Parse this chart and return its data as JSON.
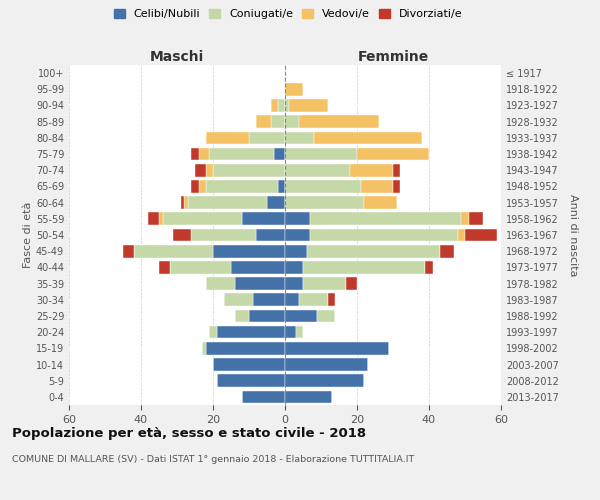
{
  "age_groups": [
    "0-4",
    "5-9",
    "10-14",
    "15-19",
    "20-24",
    "25-29",
    "30-34",
    "35-39",
    "40-44",
    "45-49",
    "50-54",
    "55-59",
    "60-64",
    "65-69",
    "70-74",
    "75-79",
    "80-84",
    "85-89",
    "90-94",
    "95-99",
    "100+"
  ],
  "birth_years": [
    "2013-2017",
    "2008-2012",
    "2003-2007",
    "1998-2002",
    "1993-1997",
    "1988-1992",
    "1983-1987",
    "1978-1982",
    "1973-1977",
    "1968-1972",
    "1963-1967",
    "1958-1962",
    "1953-1957",
    "1948-1952",
    "1943-1947",
    "1938-1942",
    "1933-1937",
    "1928-1932",
    "1923-1927",
    "1918-1922",
    "≤ 1917"
  ],
  "maschi": {
    "celibi": [
      12,
      19,
      20,
      22,
      19,
      10,
      9,
      14,
      15,
      20,
      8,
      12,
      5,
      2,
      0,
      3,
      0,
      0,
      0,
      0,
      0
    ],
    "coniugati": [
      0,
      0,
      0,
      1,
      2,
      4,
      8,
      8,
      17,
      22,
      18,
      22,
      22,
      20,
      20,
      18,
      10,
      4,
      2,
      0,
      0
    ],
    "vedovi": [
      0,
      0,
      0,
      0,
      0,
      0,
      0,
      0,
      0,
      0,
      0,
      1,
      1,
      2,
      2,
      3,
      12,
      4,
      2,
      0,
      0
    ],
    "divorziati": [
      0,
      0,
      0,
      0,
      0,
      0,
      0,
      0,
      3,
      3,
      5,
      3,
      1,
      2,
      3,
      2,
      0,
      0,
      0,
      0,
      0
    ]
  },
  "femmine": {
    "nubili": [
      13,
      22,
      23,
      29,
      3,
      9,
      4,
      5,
      5,
      6,
      7,
      7,
      0,
      0,
      0,
      0,
      0,
      0,
      0,
      0,
      0
    ],
    "coniugate": [
      0,
      0,
      0,
      0,
      2,
      5,
      8,
      12,
      34,
      37,
      41,
      42,
      22,
      21,
      18,
      20,
      8,
      4,
      1,
      0,
      0
    ],
    "vedove": [
      0,
      0,
      0,
      0,
      0,
      0,
      0,
      0,
      0,
      0,
      2,
      2,
      9,
      9,
      12,
      20,
      30,
      22,
      11,
      5,
      0
    ],
    "divorziate": [
      0,
      0,
      0,
      0,
      0,
      0,
      2,
      3,
      2,
      4,
      9,
      4,
      0,
      2,
      2,
      0,
      0,
      0,
      0,
      0,
      0
    ]
  },
  "colors": {
    "celibi": "#4472a8",
    "coniugati": "#c5d9a8",
    "vedovi": "#f5c165",
    "divorziati": "#c0392b"
  },
  "xlim": 60,
  "title": "Popolazione per età, sesso e stato civile - 2018",
  "subtitle": "COMUNE DI MALLARE (SV) - Dati ISTAT 1° gennaio 2018 - Elaborazione TUTTITALIA.IT",
  "ylabel_left": "Fasce di età",
  "ylabel_right": "Anni di nascita",
  "xlabel_left": "Maschi",
  "xlabel_right": "Femmine",
  "bg_color": "#f0f0f0",
  "bar_bg": "#ffffff"
}
